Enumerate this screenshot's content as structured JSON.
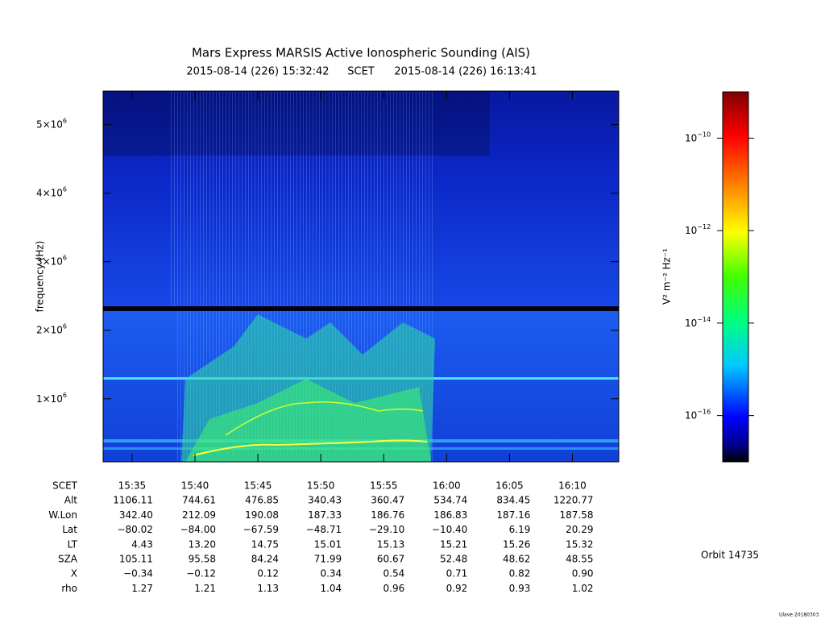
{
  "chart_data": {
    "type": "spectrogram",
    "title": "Mars Express MARSIS Active Ionospheric Sounding (AIS)",
    "subtitle": {
      "start": "2015-08-14 (226) 15:32:42",
      "frame": "SCET",
      "end": "2015-08-14 (226) 16:13:41"
    },
    "y_label": "frequency (Hz)",
    "ylim": [
      80000,
      5490000
    ],
    "yticks": [
      {
        "value": 1000000,
        "label": "1×10",
        "exponent": "6"
      },
      {
        "value": 2000000,
        "label": "2×10",
        "exponent": "6"
      },
      {
        "value": 3000000,
        "label": "3×10",
        "exponent": "6"
      },
      {
        "value": 4000000,
        "label": "4×10",
        "exponent": "6"
      },
      {
        "value": 5000000,
        "label": "5×10",
        "exponent": "6"
      }
    ],
    "colorbar": {
      "label": "V² m⁻² Hz⁻¹",
      "log_scale": true,
      "clim": [
        1e-17,
        1e-09
      ],
      "ticks": [
        {
          "value": 1e-10,
          "label": "10",
          "exponent": "−10"
        },
        {
          "value": 1e-12,
          "label": "10",
          "exponent": "−12"
        },
        {
          "value": 1e-14,
          "label": "10",
          "exponent": "−14"
        },
        {
          "value": 1e-16,
          "label": "10",
          "exponent": "−16"
        }
      ]
    },
    "table": [
      {
        "label": "SCET",
        "values": [
          "15:35",
          "15:40",
          "15:45",
          "15:50",
          "15:55",
          "16:00",
          "16:05",
          "16:10"
        ]
      },
      {
        "label": "Alt",
        "values": [
          "1106.11",
          "744.61",
          "476.85",
          "340.43",
          "360.47",
          "534.74",
          "834.45",
          "1220.77"
        ]
      },
      {
        "label": "W.Lon",
        "values": [
          "342.40",
          "212.09",
          "190.08",
          "187.33",
          "186.76",
          "186.83",
          "187.16",
          "187.58"
        ]
      },
      {
        "label": "Lat",
        "values": [
          "−80.02",
          "−84.00",
          "−67.59",
          "−48.71",
          "−29.10",
          "−10.40",
          "6.19",
          "20.29"
        ]
      },
      {
        "label": "LT",
        "values": [
          "4.43",
          "13.20",
          "14.75",
          "15.01",
          "15.13",
          "15.21",
          "15.26",
          "15.32"
        ]
      },
      {
        "label": "SZA",
        "values": [
          "105.11",
          "95.58",
          "84.24",
          "71.99",
          "60.67",
          "52.48",
          "48.62",
          "48.55"
        ]
      },
      {
        "label": "X",
        "values": [
          "−0.34",
          "−0.12",
          "0.12",
          "0.34",
          "0.54",
          "0.71",
          "0.82",
          "0.90"
        ]
      },
      {
        "label": "rho",
        "values": [
          "1.27",
          "1.21",
          "1.13",
          "1.04",
          "0.96",
          "0.92",
          "0.93",
          "1.02"
        ]
      }
    ],
    "orbit": "Orbit 14735",
    "footer": "Ulave 20180303"
  }
}
